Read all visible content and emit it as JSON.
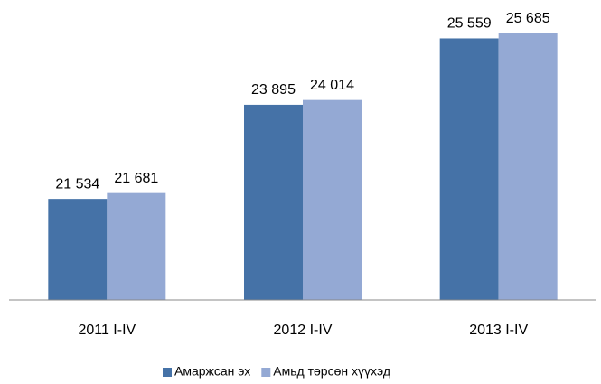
{
  "chart_data": {
    "type": "bar",
    "categories": [
      "2011 I-IV",
      "2012 I-IV",
      "2013 I-IV"
    ],
    "series": [
      {
        "name": "Амаржсан эх",
        "color": "#4572a7",
        "values": [
          21534,
          23895,
          25559
        ],
        "value_labels": [
          "21 534",
          "23 895",
          "25 559"
        ]
      },
      {
        "name": "Амьд төрсөн хүүхэд",
        "color": "#94a9d4",
        "values": [
          21681,
          24014,
          25685
        ],
        "value_labels": [
          "21 681",
          "24 014",
          "25 685"
        ]
      }
    ],
    "ylim": [
      19000,
      26000
    ],
    "legend": "bottom"
  }
}
